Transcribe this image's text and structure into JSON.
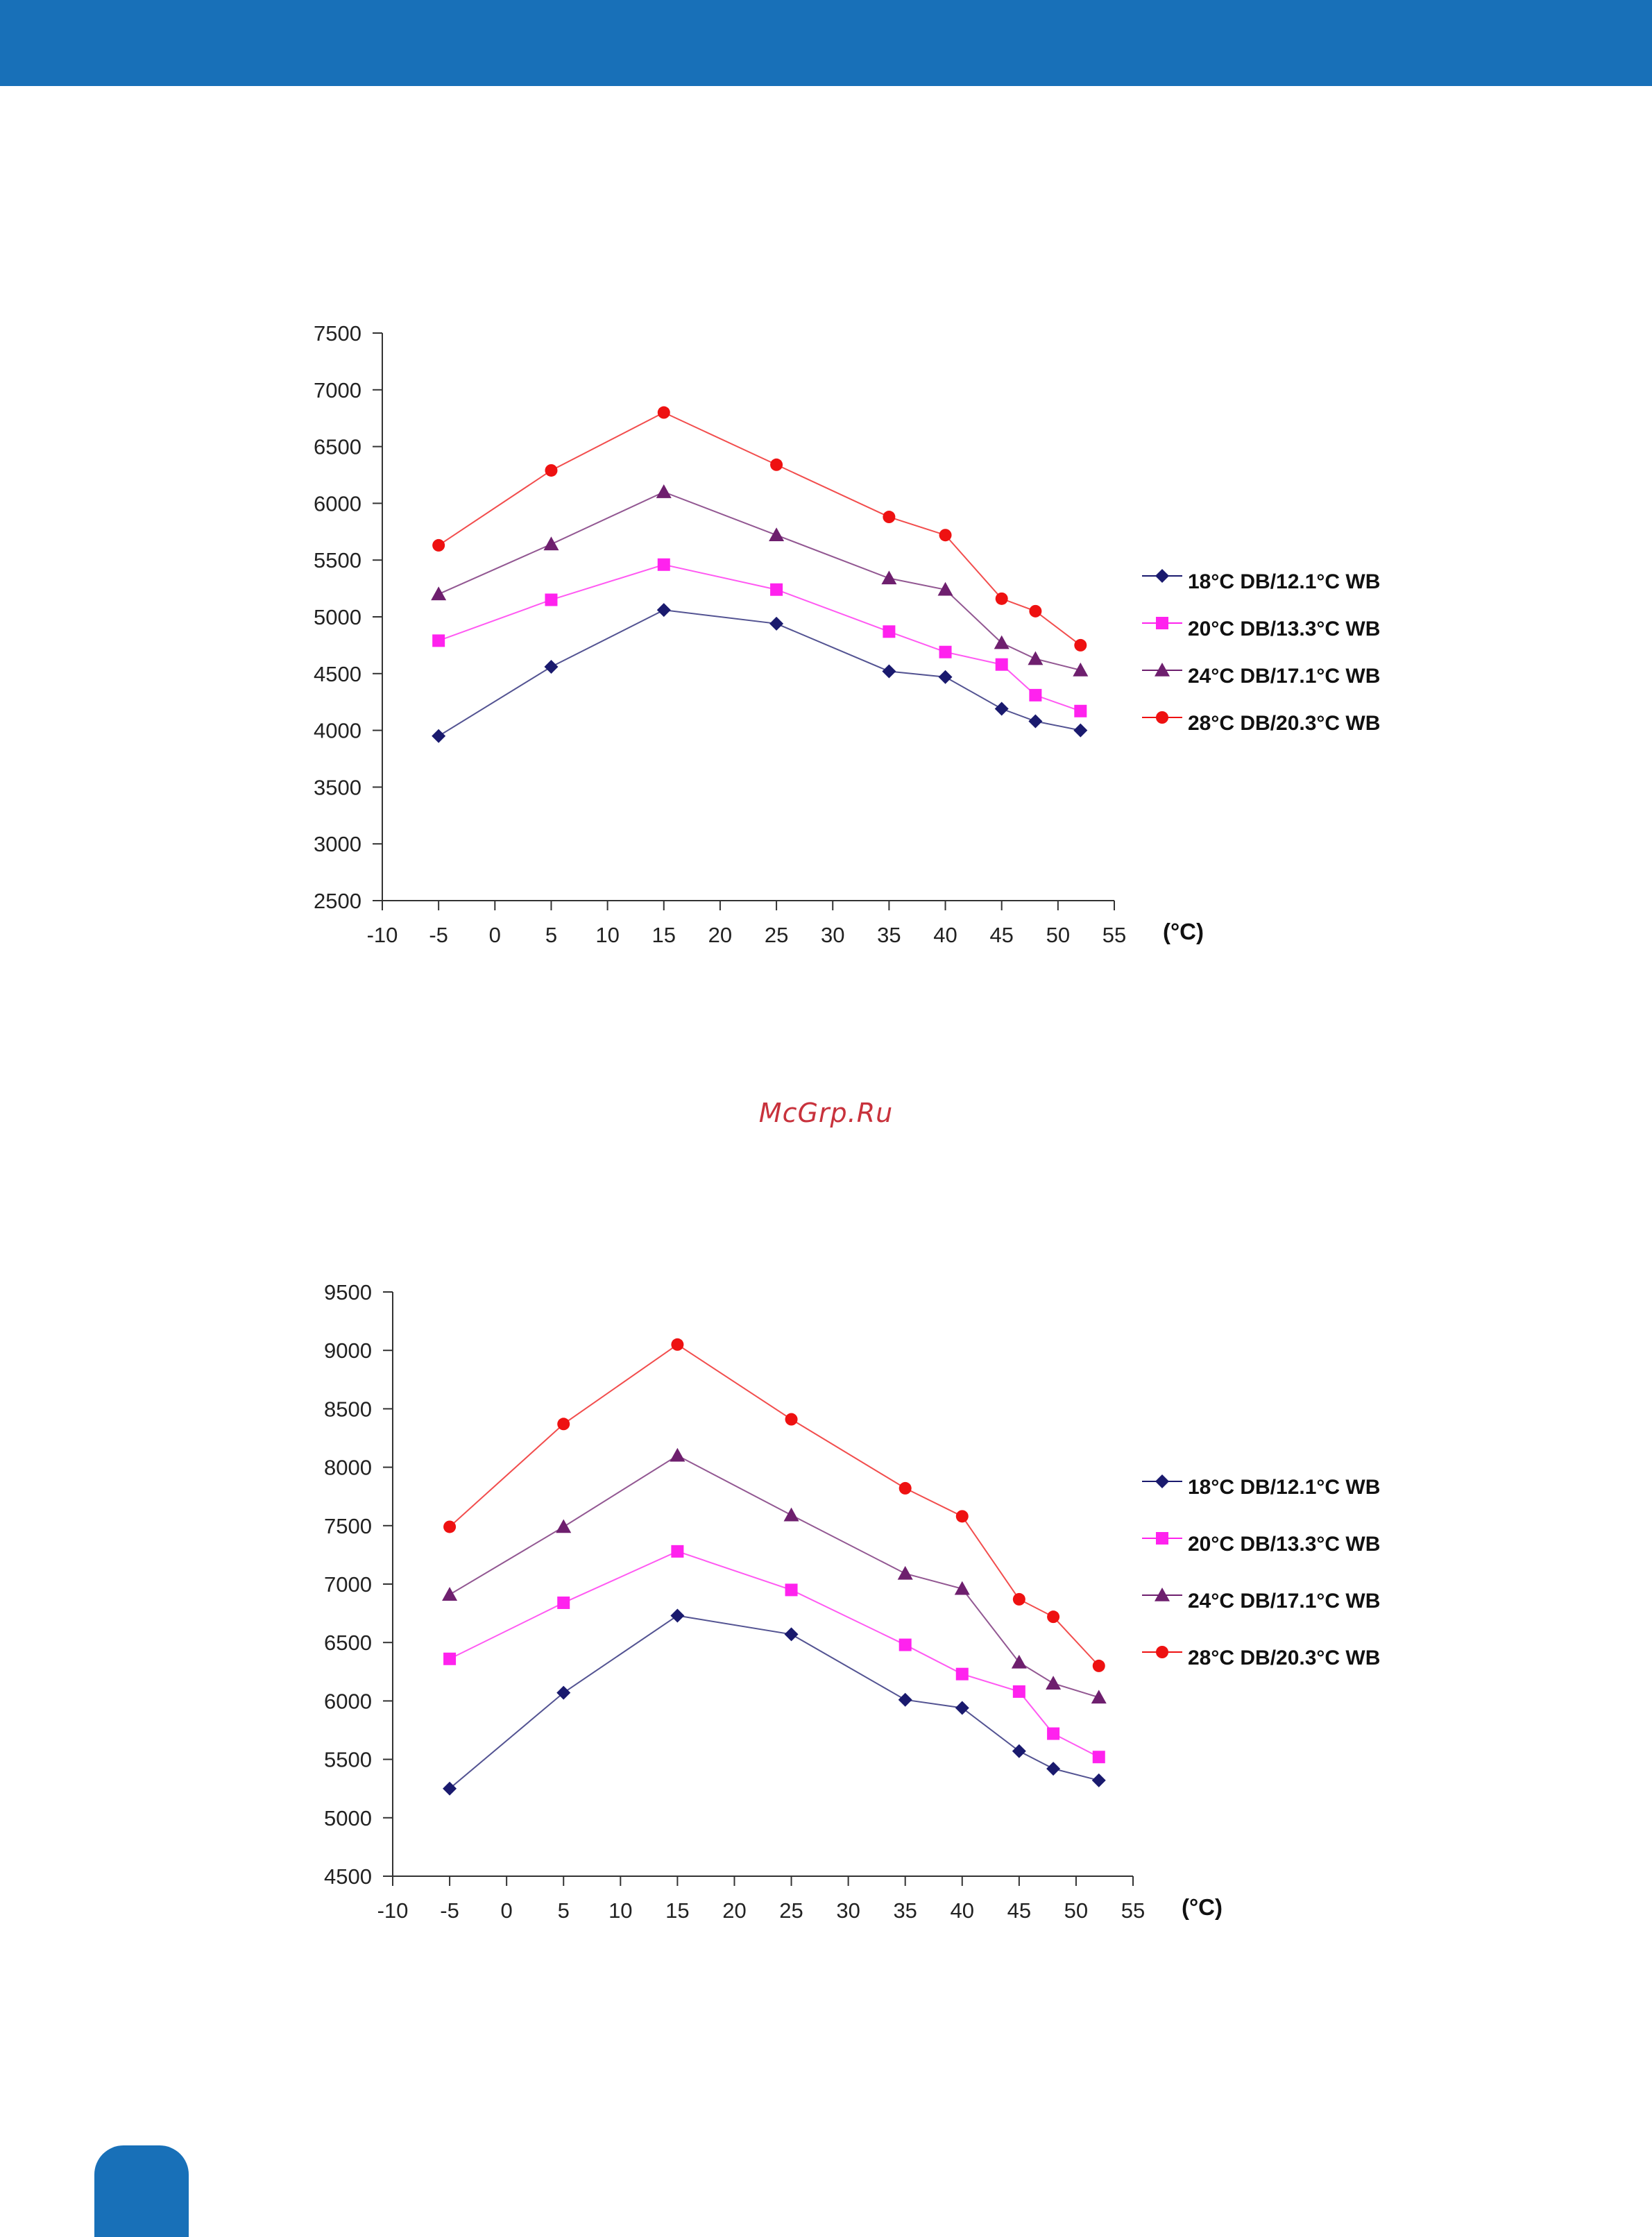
{
  "page": {
    "header_color": "#1870b8",
    "watermark": "McGrp.Ru"
  },
  "chart_data": [
    {
      "type": "line",
      "title": "",
      "xlabel": "(°C)",
      "ylabel": "",
      "xlim": [
        -10,
        55
      ],
      "ylim": [
        2500,
        7500
      ],
      "xticks": [
        -10,
        -5,
        0,
        5,
        10,
        15,
        20,
        25,
        30,
        35,
        40,
        45,
        50,
        55
      ],
      "yticks": [
        2500,
        3000,
        3500,
        4000,
        4500,
        5000,
        5500,
        6000,
        6500,
        7000,
        7500
      ],
      "grid": false,
      "legend": "right",
      "x": [
        -5,
        5,
        15,
        25,
        35,
        40,
        45,
        48,
        52
      ],
      "series": [
        {
          "name": "18°C DB/12.1°C WB",
          "color": "#1a1a6e",
          "marker": "diamond",
          "values": [
            3950,
            4560,
            5060,
            4940,
            4520,
            4470,
            4190,
            4080,
            4000
          ]
        },
        {
          "name": "20°C DB/13.3°C WB",
          "color": "#ff22ee",
          "marker": "square",
          "values": [
            4790,
            5150,
            5460,
            5240,
            4870,
            4690,
            4580,
            4310,
            4170
          ]
        },
        {
          "name": "24°C DB/17.1°C WB",
          "color": "#6e1f6e",
          "marker": "triangle",
          "values": [
            5200,
            5640,
            6100,
            5720,
            5340,
            5240,
            4770,
            4630,
            4530
          ]
        },
        {
          "name": "28°C DB/20.3°C WB",
          "color": "#ee1111",
          "marker": "circle",
          "values": [
            5630,
            6290,
            6800,
            6340,
            5880,
            5720,
            5160,
            5050,
            4750
          ]
        }
      ]
    },
    {
      "type": "line",
      "title": "",
      "xlabel": "(°C)",
      "ylabel": "",
      "xlim": [
        -10,
        55
      ],
      "ylim": [
        4500,
        9500
      ],
      "xticks": [
        -10,
        -5,
        0,
        5,
        10,
        15,
        20,
        25,
        30,
        35,
        40,
        45,
        50,
        55
      ],
      "yticks": [
        4500,
        5000,
        5500,
        6000,
        6500,
        7000,
        7500,
        8000,
        8500,
        9000,
        9500
      ],
      "grid": false,
      "legend": "right",
      "x": [
        -5,
        5,
        15,
        25,
        35,
        40,
        45,
        48,
        52
      ],
      "series": [
        {
          "name": "18°C DB/12.1°C WB",
          "color": "#1a1a6e",
          "marker": "diamond",
          "values": [
            5250,
            6070,
            6730,
            6570,
            6010,
            5940,
            5570,
            5420,
            5320
          ]
        },
        {
          "name": "20°C DB/13.3°C WB",
          "color": "#ff22ee",
          "marker": "square",
          "values": [
            6360,
            6840,
            7280,
            6950,
            6480,
            6230,
            6080,
            5720,
            5520
          ]
        },
        {
          "name": "24°C DB/17.1°C WB",
          "color": "#6e1f6e",
          "marker": "triangle",
          "values": [
            6910,
            7490,
            8100,
            7590,
            7090,
            6960,
            6330,
            6150,
            6030
          ]
        },
        {
          "name": "28°C DB/20.3°C WB",
          "color": "#ee1111",
          "marker": "circle",
          "values": [
            7490,
            8370,
            9050,
            8410,
            7820,
            7580,
            6870,
            6720,
            6300
          ]
        }
      ]
    }
  ]
}
